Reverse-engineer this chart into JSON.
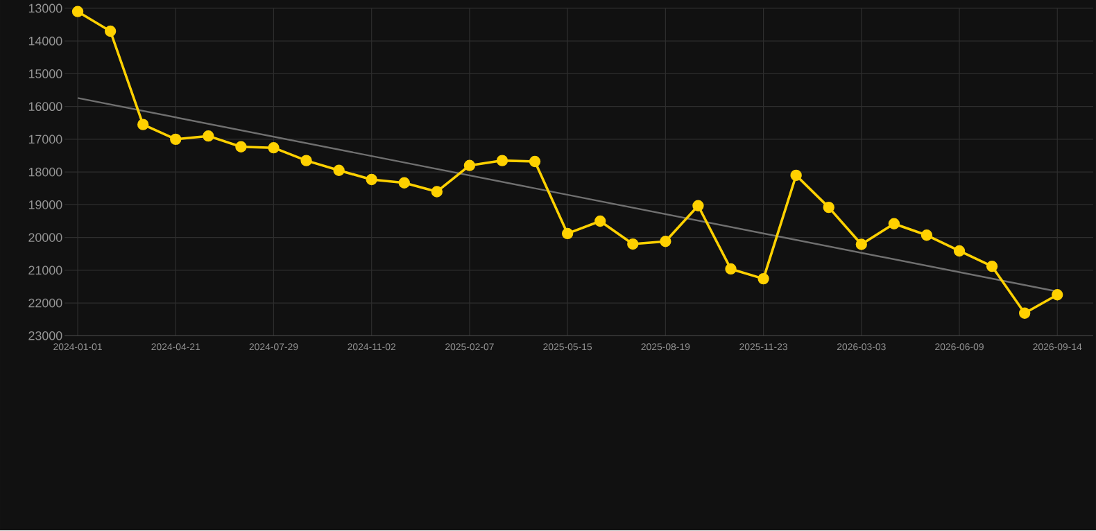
{
  "chart_data": {
    "type": "line",
    "categories": [
      "2024-01-01",
      null,
      null,
      "2024-04-21",
      null,
      null,
      "2024-07-29",
      null,
      null,
      "2024-11-02",
      null,
      null,
      "2025-02-07",
      null,
      null,
      "2025-05-15",
      null,
      null,
      "2025-08-19",
      null,
      null,
      "2025-11-23",
      null,
      null,
      "2026-03-03",
      null,
      null,
      "2026-06-09",
      null,
      null,
      "2026-09-14"
    ],
    "series": [
      {
        "color": "#ffd100",
        "marker": "circle",
        "values": [
          13100,
          13700,
          16550,
          17000,
          16900,
          17230,
          17260,
          17650,
          17950,
          18230,
          18330,
          18600,
          17800,
          17650,
          17680,
          19880,
          19500,
          20200,
          20120,
          19030,
          20960,
          21260,
          18100,
          19080,
          20210,
          19580,
          19930,
          20410,
          20880,
          22310,
          21750
        ]
      },
      {
        "color": "#707070",
        "marker": "none",
        "values": [
          15740,
          null,
          null,
          null,
          null,
          null,
          null,
          null,
          null,
          null,
          null,
          null,
          null,
          null,
          null,
          null,
          null,
          null,
          null,
          null,
          null,
          null,
          null,
          null,
          null,
          null,
          null,
          null,
          null,
          null,
          21650
        ]
      }
    ],
    "ylim": [
      23000,
      13000
    ],
    "yticks": [
      13000,
      14000,
      15000,
      16000,
      17000,
      18000,
      19000,
      20000,
      21000,
      22000,
      23000
    ],
    "grid": true
  }
}
